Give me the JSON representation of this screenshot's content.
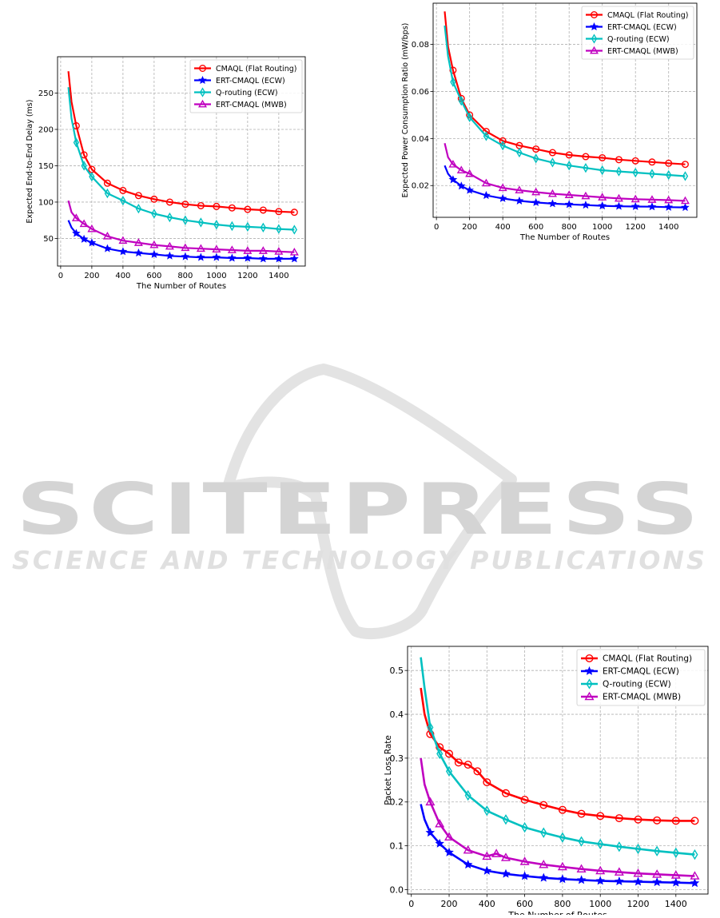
{
  "watermark": {
    "brand": "SCITEPRESS",
    "tagline": "SCIENCE AND TECHNOLOGY PUBLICATIONS"
  },
  "chart_data": [
    {
      "id": "delay",
      "type": "line",
      "title": "",
      "xlabel": "The Number of Routes",
      "ylabel": "Expected End-to-End Delay (ms)",
      "xlim": [
        -20,
        1570
      ],
      "ylim": [
        12,
        300
      ],
      "xticks": [
        0,
        200,
        400,
        600,
        800,
        1000,
        1200,
        1400
      ],
      "yticks": [
        50,
        100,
        150,
        200,
        250
      ],
      "ytick_labels": [
        "50",
        "100",
        "150",
        "200",
        "250"
      ],
      "grid": true,
      "legend_position": "top-right",
      "series": [
        {
          "name": "CMAQL (Flat Routing)",
          "color": "#ff0000",
          "marker": "circle",
          "x": [
            50,
            70,
            100,
            150,
            200,
            300,
            400,
            500,
            600,
            700,
            800,
            900,
            1000,
            1100,
            1200,
            1300,
            1400,
            1500
          ],
          "y": [
            280,
            238,
            205,
            165,
            145,
            126,
            116,
            109,
            104,
            100,
            97,
            95,
            94,
            92,
            90,
            89,
            87,
            86
          ]
        },
        {
          "name": "ERT-CMAQL (ECW)",
          "color": "#0000ff",
          "marker": "star",
          "x": [
            50,
            70,
            100,
            150,
            200,
            300,
            400,
            500,
            600,
            700,
            800,
            900,
            1000,
            1100,
            1200,
            1300,
            1400,
            1500
          ],
          "y": [
            75,
            65,
            57,
            49,
            44,
            36,
            32,
            30,
            28,
            26,
            25,
            24,
            24,
            23,
            23,
            22,
            22,
            22
          ]
        },
        {
          "name": "Q-routing (ECW)",
          "color": "#00c0c0",
          "marker": "diamond",
          "x": [
            50,
            70,
            100,
            150,
            200,
            300,
            400,
            500,
            600,
            700,
            800,
            900,
            1000,
            1100,
            1200,
            1300,
            1400,
            1500
          ],
          "y": [
            258,
            215,
            182,
            150,
            135,
            112,
            102,
            91,
            84,
            79,
            75,
            72,
            69,
            67,
            66,
            65,
            63,
            62
          ]
        },
        {
          "name": "ERT-CMAQL (MWB)",
          "color": "#c000c0",
          "marker": "triangle",
          "x": [
            50,
            70,
            100,
            150,
            200,
            300,
            400,
            500,
            600,
            700,
            800,
            900,
            1000,
            1100,
            1200,
            1300,
            1400,
            1500
          ],
          "y": [
            102,
            86,
            78,
            70,
            63,
            53,
            47,
            44,
            41,
            39,
            37,
            36,
            35,
            34,
            33,
            33,
            32,
            31
          ]
        }
      ]
    },
    {
      "id": "power",
      "type": "line",
      "title": "",
      "xlabel": "The Number of Routes",
      "ylabel": "Expected Power Consumption Ratio (mW/bps)",
      "xlim": [
        -20,
        1570
      ],
      "ylim": [
        0.0065,
        0.0975
      ],
      "xticks": [
        0,
        200,
        400,
        600,
        800,
        1000,
        1200,
        1400
      ],
      "yticks": [
        0.02,
        0.04,
        0.06,
        0.08
      ],
      "ytick_labels": [
        "0.02",
        "0.04",
        "0.06",
        "0.08"
      ],
      "grid": true,
      "legend_position": "top-right",
      "series": [
        {
          "name": "CMAQL (Flat Routing)",
          "color": "#ff0000",
          "marker": "circle",
          "x": [
            50,
            70,
            100,
            150,
            200,
            300,
            400,
            500,
            600,
            700,
            800,
            900,
            1000,
            1100,
            1200,
            1300,
            1400,
            1500
          ],
          "y": [
            0.094,
            0.079,
            0.069,
            0.057,
            0.05,
            0.043,
            0.039,
            0.037,
            0.0355,
            0.034,
            0.033,
            0.0323,
            0.0318,
            0.031,
            0.0305,
            0.03,
            0.0295,
            0.029
          ]
        },
        {
          "name": "ERT-CMAQL (ECW)",
          "color": "#0000ff",
          "marker": "star",
          "x": [
            50,
            70,
            100,
            150,
            200,
            300,
            400,
            500,
            600,
            700,
            800,
            900,
            1000,
            1100,
            1200,
            1300,
            1400,
            1500
          ],
          "y": [
            0.0285,
            0.025,
            0.0225,
            0.0198,
            0.018,
            0.0158,
            0.0145,
            0.0135,
            0.0128,
            0.0123,
            0.012,
            0.0117,
            0.0114,
            0.0112,
            0.0111,
            0.011,
            0.0108,
            0.0107
          ]
        },
        {
          "name": "Q-routing (ECW)",
          "color": "#00c0c0",
          "marker": "diamond",
          "x": [
            50,
            70,
            100,
            150,
            200,
            300,
            400,
            500,
            600,
            700,
            800,
            900,
            1000,
            1100,
            1200,
            1300,
            1400,
            1500
          ],
          "y": [
            0.088,
            0.075,
            0.064,
            0.056,
            0.049,
            0.041,
            0.037,
            0.034,
            0.0315,
            0.0298,
            0.0285,
            0.0275,
            0.0265,
            0.026,
            0.0255,
            0.025,
            0.0245,
            0.024
          ]
        },
        {
          "name": "ERT-CMAQL (MWB)",
          "color": "#c000c0",
          "marker": "triangle",
          "x": [
            50,
            70,
            100,
            150,
            200,
            300,
            400,
            500,
            600,
            700,
            800,
            900,
            1000,
            1100,
            1200,
            1300,
            1400,
            1500
          ],
          "y": [
            0.038,
            0.032,
            0.029,
            0.0265,
            0.025,
            0.021,
            0.019,
            0.018,
            0.0172,
            0.0165,
            0.016,
            0.0155,
            0.015,
            0.0145,
            0.0142,
            0.014,
            0.0138,
            0.0135
          ]
        }
      ]
    },
    {
      "id": "loss",
      "type": "line",
      "title": "",
      "xlabel": "The Number of Routes",
      "ylabel": "Packet Loss Rate",
      "xlim": [
        -20,
        1570
      ],
      "ylim": [
        -0.01,
        0.555
      ],
      "xticks": [
        0,
        200,
        400,
        600,
        800,
        1000,
        1200,
        1400
      ],
      "yticks": [
        0.0,
        0.1,
        0.2,
        0.3,
        0.4,
        0.5
      ],
      "ytick_labels": [
        "0.0",
        "0.1",
        "0.2",
        "0.3",
        "0.4",
        "0.5"
      ],
      "grid": true,
      "legend_position": "top-right",
      "series": [
        {
          "name": "CMAQL (Flat Routing)",
          "color": "#ff0000",
          "marker": "circle",
          "x": [
            50,
            70,
            100,
            150,
            200,
            250,
            300,
            350,
            400,
            500,
            600,
            700,
            800,
            900,
            1000,
            1100,
            1200,
            1300,
            1400,
            1500
          ],
          "y": [
            0.46,
            0.4,
            0.355,
            0.325,
            0.31,
            0.29,
            0.285,
            0.27,
            0.245,
            0.22,
            0.205,
            0.193,
            0.182,
            0.173,
            0.168,
            0.163,
            0.16,
            0.158,
            0.157,
            0.157
          ]
        },
        {
          "name": "ERT-CMAQL (ECW)",
          "color": "#0000ff",
          "marker": "star",
          "x": [
            50,
            70,
            100,
            150,
            200,
            300,
            400,
            500,
            600,
            700,
            800,
            900,
            1000,
            1100,
            1200,
            1300,
            1400,
            1500
          ],
          "y": [
            0.195,
            0.16,
            0.13,
            0.105,
            0.085,
            0.057,
            0.043,
            0.036,
            0.031,
            0.027,
            0.024,
            0.022,
            0.02,
            0.019,
            0.018,
            0.017,
            0.016,
            0.015
          ]
        },
        {
          "name": "Q-routing (ECW)",
          "color": "#00c0c0",
          "marker": "diamond",
          "x": [
            50,
            70,
            100,
            150,
            200,
            300,
            400,
            500,
            600,
            700,
            800,
            900,
            1000,
            1100,
            1200,
            1300,
            1400,
            1500
          ],
          "y": [
            0.53,
            0.46,
            0.37,
            0.31,
            0.27,
            0.215,
            0.18,
            0.16,
            0.142,
            0.13,
            0.119,
            0.11,
            0.104,
            0.098,
            0.093,
            0.088,
            0.084,
            0.08
          ]
        },
        {
          "name": "ERT-CMAQL (MWB)",
          "color": "#c000c0",
          "marker": "triangle",
          "x": [
            50,
            70,
            100,
            150,
            200,
            300,
            400,
            450,
            500,
            600,
            700,
            800,
            900,
            1000,
            1100,
            1200,
            1300,
            1400,
            1500
          ],
          "y": [
            0.3,
            0.24,
            0.2,
            0.15,
            0.12,
            0.09,
            0.076,
            0.082,
            0.073,
            0.064,
            0.057,
            0.052,
            0.047,
            0.043,
            0.04,
            0.037,
            0.035,
            0.033,
            0.031
          ]
        }
      ]
    }
  ]
}
